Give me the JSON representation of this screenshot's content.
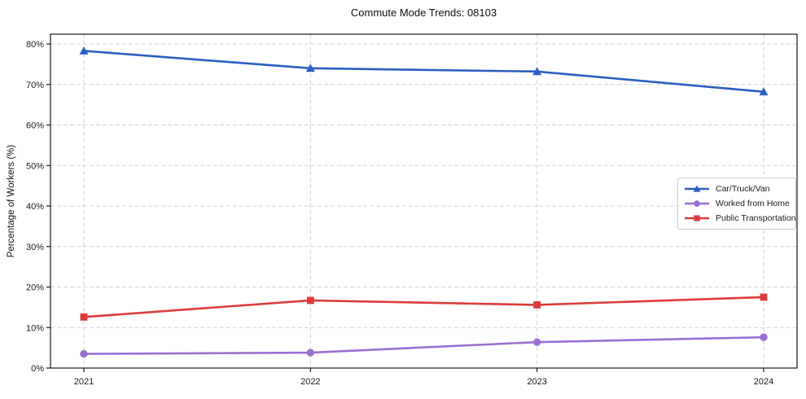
{
  "chart_data": {
    "type": "line",
    "title": "Commute Mode Trends: 08103",
    "xlabel": "",
    "ylabel": "Percentage of Workers (%)",
    "categories": [
      "2021",
      "2022",
      "2023",
      "2024"
    ],
    "series": [
      {
        "name": "Car/Truck/Van",
        "color": "#2b5fc2",
        "marker": "triangle",
        "values": [
          78.3,
          74.0,
          73.2,
          68.2
        ]
      },
      {
        "name": "Worked from Home",
        "color": "#9a6fd2",
        "marker": "circle",
        "values": [
          3.5,
          3.8,
          6.4,
          7.6
        ]
      },
      {
        "name": "Public Transportation",
        "color": "#dc3b3b",
        "marker": "square",
        "values": [
          12.6,
          16.7,
          15.6,
          17.5
        ]
      }
    ],
    "ylim": [
      0,
      80
    ],
    "ytick_values": [
      0,
      10,
      20,
      30,
      40,
      50,
      60,
      70,
      80
    ],
    "ytick_labels": [
      "0%",
      "10%",
      "20%",
      "30%",
      "40%",
      "50%",
      "60%",
      "70%",
      "80%"
    ],
    "grid": "dashed-both-axes",
    "legend_position": "center-right",
    "colors": {
      "grid": "#d2d2d2",
      "spine": "#1a1a1a",
      "text": "#1a1a1a",
      "background": "#ffffff"
    }
  }
}
